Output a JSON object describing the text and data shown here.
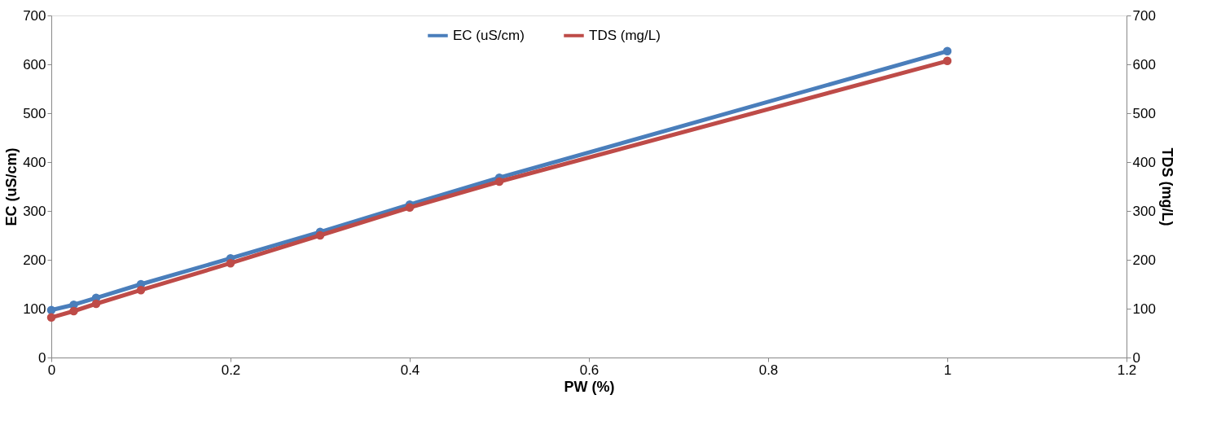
{
  "chart_data": {
    "type": "line",
    "xlabel": "PW (%)",
    "ylabel": "EC (uS/cm)",
    "y2label": "TDS (mg/L)",
    "x": [
      0,
      0.025,
      0.05,
      0.1,
      0.2,
      0.3,
      0.4,
      0.5,
      1
    ],
    "series": [
      {
        "name": "EC (uS/cm)",
        "color": "#4a7ebb",
        "values": [
          97,
          108,
          122,
          150,
          203,
          257,
          313,
          368,
          627
        ]
      },
      {
        "name": "TDS (mg/L)",
        "color": "#be4b48",
        "axis": "y2",
        "values": [
          82,
          95,
          110,
          138,
          193,
          250,
          307,
          360,
          607
        ]
      }
    ],
    "xlim": [
      0,
      1.2
    ],
    "xticks": [
      0,
      0.2,
      0.4,
      0.6,
      0.8,
      1,
      1.2
    ],
    "ylim": [
      0,
      700
    ],
    "yticks": [
      0,
      100,
      200,
      300,
      400,
      500,
      600,
      700
    ],
    "y2lim": [
      0,
      700
    ],
    "y2ticks": [
      0,
      100,
      200,
      300,
      400,
      500,
      600,
      700
    ],
    "grid": false,
    "legend": "top",
    "marker": "circle",
    "line_style": "solid"
  }
}
